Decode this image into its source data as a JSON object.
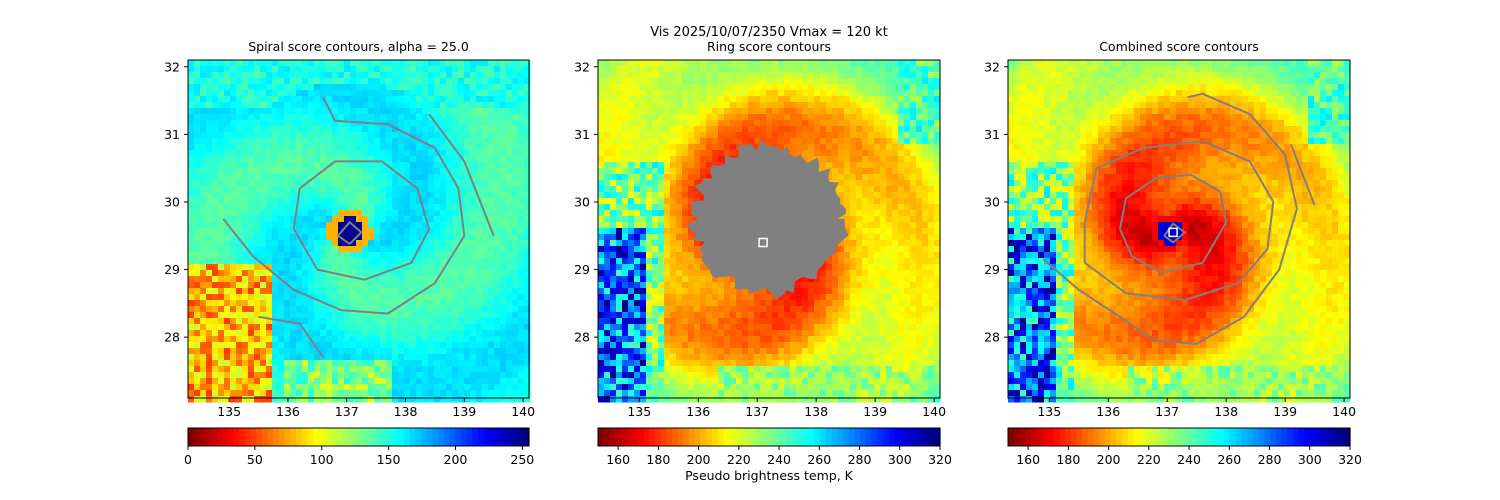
{
  "suptitle": "Vis  2025/10/07/2350    Vmax = 120 kt",
  "colors": {
    "contour": "#808080",
    "marker": "#ffffff",
    "jet_r": [
      "#7f0000",
      "#ff0000",
      "#ff8000",
      "#ffff00",
      "#80ff80",
      "#00ffff",
      "#0080ff",
      "#0000ff",
      "#00007f"
    ]
  },
  "storm_center": {
    "lon": 137.05,
    "lat": 29.55
  },
  "chart_data": [
    {
      "type": "heatmap",
      "title": "Spiral score contours, alpha = 25.0",
      "xlim": [
        134.3,
        140.1
      ],
      "ylim": [
        27.1,
        32.1
      ],
      "xticks": [
        135,
        136,
        137,
        138,
        139,
        140
      ],
      "yticks": [
        28,
        29,
        30,
        31,
        32
      ],
      "colorbar": {
        "min": 0,
        "max": 255,
        "ticks": [
          0,
          50,
          100,
          150,
          200,
          250
        ],
        "cmap": "jet_r",
        "label": ""
      },
      "field": {
        "kind": "spiral",
        "center_lon": 137.05,
        "center_lat": 29.55
      },
      "contours": [
        {
          "name": "inner-ring",
          "points": [
            [
              136.2,
              30.2
            ],
            [
              136.8,
              30.6
            ],
            [
              137.6,
              30.6
            ],
            [
              138.2,
              30.2
            ],
            [
              138.4,
              29.6
            ],
            [
              138.1,
              29.1
            ],
            [
              137.3,
              28.85
            ],
            [
              136.5,
              29.0
            ],
            [
              136.1,
              29.6
            ],
            [
              136.2,
              30.2
            ]
          ]
        },
        {
          "name": "outer-arc",
          "points": [
            [
              134.9,
              29.75
            ],
            [
              135.4,
              29.2
            ],
            [
              136.1,
              28.7
            ],
            [
              136.9,
              28.4
            ],
            [
              137.7,
              28.35
            ],
            [
              138.5,
              28.8
            ],
            [
              139.0,
              29.5
            ],
            [
              138.9,
              30.2
            ],
            [
              138.5,
              30.8
            ],
            [
              137.7,
              31.15
            ],
            [
              136.8,
              31.2
            ],
            [
              136.6,
              31.55
            ]
          ]
        },
        {
          "name": "east-arc",
          "points": [
            [
              138.4,
              31.3
            ],
            [
              139.0,
              30.6
            ],
            [
              139.5,
              29.5
            ]
          ]
        },
        {
          "name": "southwest-arc",
          "points": [
            [
              135.5,
              28.3
            ],
            [
              136.2,
              28.2
            ],
            [
              136.6,
              27.7
            ]
          ]
        },
        {
          "name": "eye-ring",
          "points": [
            [
              136.85,
              29.5
            ],
            [
              137.05,
              29.7
            ],
            [
              137.25,
              29.55
            ],
            [
              137.05,
              29.38
            ],
            [
              136.85,
              29.5
            ]
          ]
        }
      ],
      "marker": null
    },
    {
      "type": "heatmap",
      "title": "Ring score contours",
      "xlim": [
        134.3,
        140.1
      ],
      "ylim": [
        27.1,
        32.1
      ],
      "xticks": [
        135,
        136,
        137,
        138,
        139,
        140
      ],
      "yticks": [
        28,
        29,
        30,
        31,
        32
      ],
      "colorbar": {
        "min": 150,
        "max": 320,
        "ticks": [
          160,
          180,
          200,
          220,
          240,
          260,
          280,
          300,
          320
        ],
        "cmap": "jet_r",
        "label": "Pseudo brightness temp, K"
      },
      "field": {
        "kind": "temp",
        "center_lon": 137.05,
        "center_lat": 29.55
      },
      "contours": [],
      "gray_blob": {
        "center_lon": 137.2,
        "center_lat": 29.75,
        "radius_lon": 1.4,
        "radius_lat": 1.2
      },
      "marker": {
        "lon": 137.1,
        "lat": 29.4
      }
    },
    {
      "type": "heatmap",
      "title": "Combined score contours",
      "xlim": [
        134.3,
        140.1
      ],
      "ylim": [
        27.1,
        32.1
      ],
      "xticks": [
        135,
        136,
        137,
        138,
        139,
        140
      ],
      "yticks": [
        28,
        29,
        30,
        31,
        32
      ],
      "colorbar": {
        "min": 150,
        "max": 320,
        "ticks": [
          160,
          180,
          200,
          220,
          240,
          260,
          280,
          300,
          320
        ],
        "cmap": "jet_r",
        "label": ""
      },
      "field": {
        "kind": "temp",
        "center_lon": 137.05,
        "center_lat": 29.55
      },
      "contours": [
        {
          "name": "inner-ring",
          "points": [
            [
              136.3,
              30.05
            ],
            [
              136.8,
              30.35
            ],
            [
              137.4,
              30.4
            ],
            [
              137.9,
              30.15
            ],
            [
              138.0,
              29.7
            ],
            [
              137.6,
              29.1
            ],
            [
              136.9,
              28.95
            ],
            [
              136.4,
              29.2
            ],
            [
              136.2,
              29.6
            ],
            [
              136.3,
              30.05
            ]
          ]
        },
        {
          "name": "middle-ring",
          "points": [
            [
              135.8,
              30.5
            ],
            [
              136.6,
              30.8
            ],
            [
              137.6,
              30.9
            ],
            [
              138.4,
              30.6
            ],
            [
              138.8,
              30.0
            ],
            [
              138.7,
              29.3
            ],
            [
              138.2,
              28.8
            ],
            [
              137.3,
              28.55
            ],
            [
              136.3,
              28.65
            ],
            [
              135.6,
              29.1
            ],
            [
              135.6,
              29.7
            ],
            [
              135.8,
              30.5
            ]
          ]
        },
        {
          "name": "outer-spiral",
          "points": [
            [
              134.9,
              29.15
            ],
            [
              135.5,
              28.7
            ],
            [
              136.2,
              28.3
            ],
            [
              136.8,
              27.95
            ],
            [
              137.5,
              27.9
            ],
            [
              138.3,
              28.3
            ],
            [
              138.9,
              29.0
            ],
            [
              139.2,
              29.9
            ],
            [
              139.0,
              30.7
            ],
            [
              138.4,
              31.3
            ],
            [
              137.6,
              31.6
            ],
            [
              137.35,
              31.55
            ]
          ]
        },
        {
          "name": "east-arc",
          "points": [
            [
              139.1,
              30.85
            ],
            [
              139.5,
              29.95
            ]
          ]
        },
        {
          "name": "eye-ring",
          "points": [
            [
              136.95,
              29.5
            ],
            [
              137.1,
              29.68
            ],
            [
              137.3,
              29.55
            ],
            [
              137.1,
              29.4
            ],
            [
              136.95,
              29.5
            ]
          ]
        }
      ],
      "marker": {
        "lon": 137.1,
        "lat": 29.55
      }
    }
  ]
}
